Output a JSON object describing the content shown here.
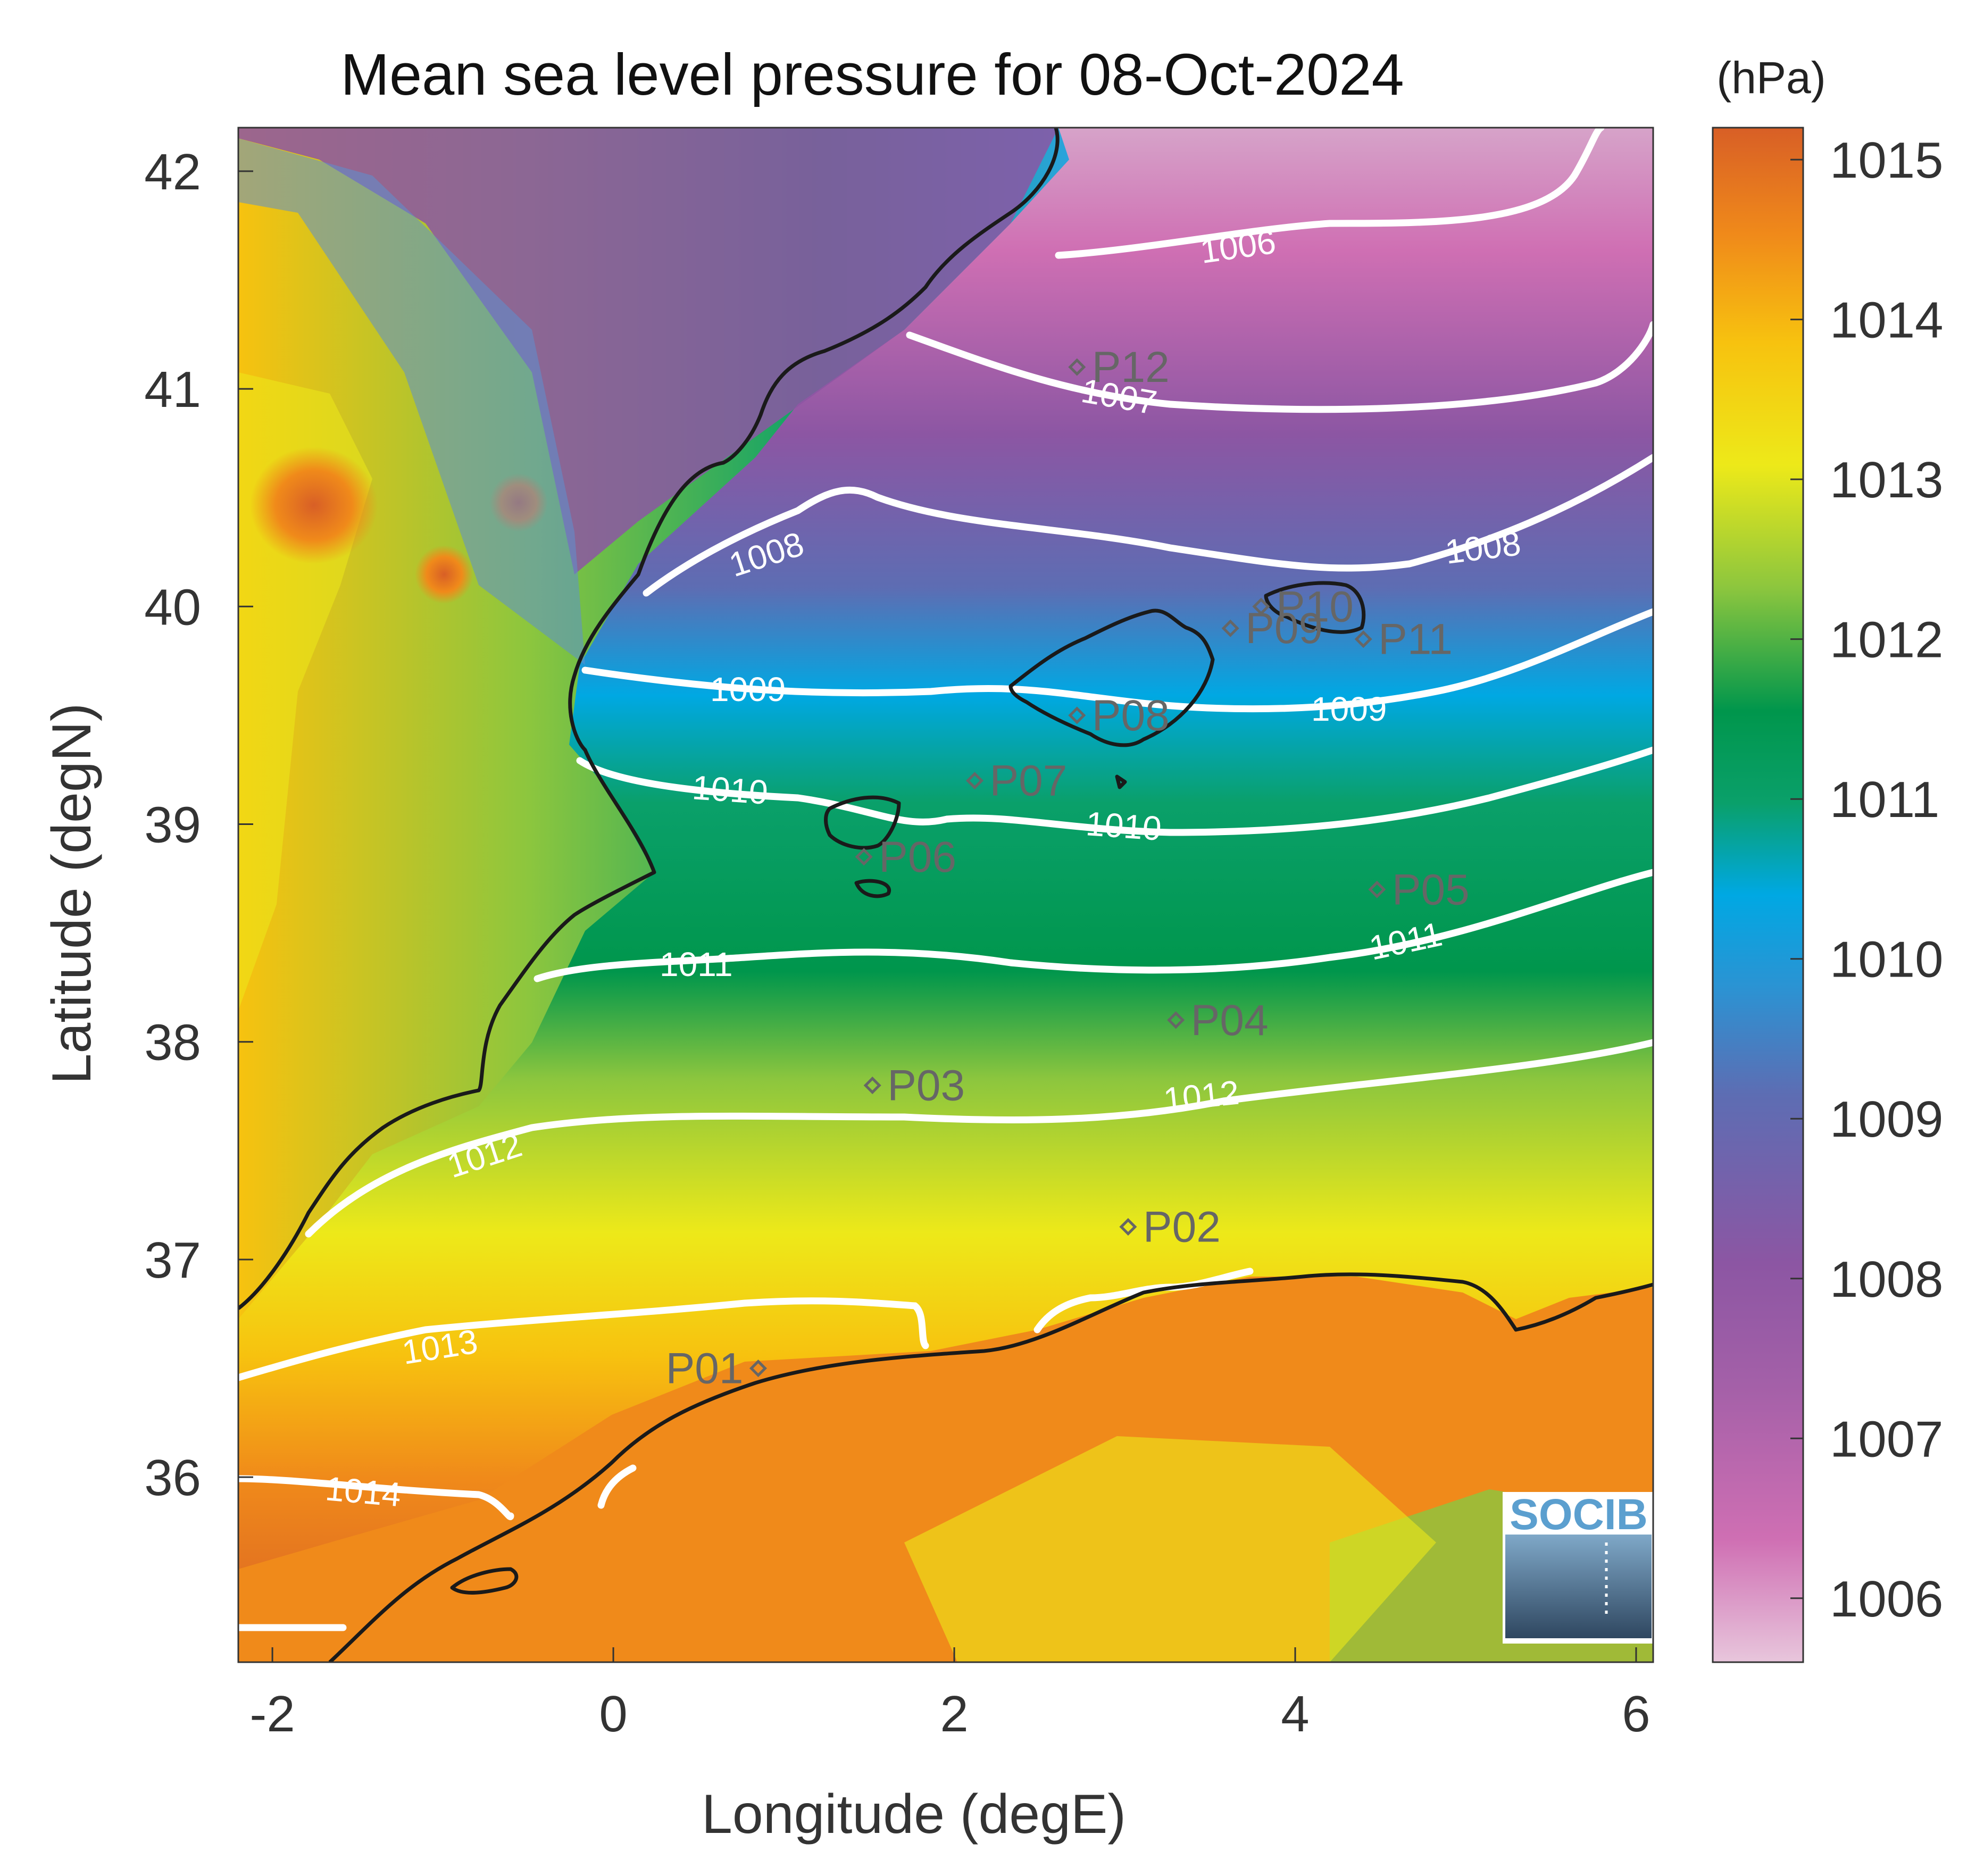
{
  "title": "Mean sea level pressure for 08-Oct-2024",
  "colorbar": {
    "unit": "(hPa)",
    "min": 1005.6,
    "max": 1015.2,
    "ticks": [
      "1006",
      "1007",
      "1008",
      "1009",
      "1010",
      "1011",
      "1012",
      "1013",
      "1014",
      "1015"
    ],
    "colors": [
      "#e8c6dc",
      "#cf6fb3",
      "#8c56a3",
      "#5d6db3",
      "#2ba3dc",
      "#00a8e3",
      "#0aa06a",
      "#00964c",
      "#8cc63e",
      "#ede919",
      "#f7c20f",
      "#f08a1a",
      "#d85f26"
    ]
  },
  "x_axis": {
    "label": "Longitude (degE)",
    "range": [
      -2.2,
      6.1
    ],
    "ticks": [
      "-2",
      "0",
      "2",
      "4",
      "6"
    ]
  },
  "y_axis": {
    "label": "Latitude (degN)",
    "range": [
      35.15,
      42.2
    ],
    "ticks": [
      "36",
      "37",
      "38",
      "39",
      "40",
      "41",
      "42"
    ]
  },
  "contours": [
    {
      "level": "1006",
      "color": "#ffffff"
    },
    {
      "level": "1007",
      "color": "#ffffff"
    },
    {
      "level": "1008",
      "color": "#ffffff"
    },
    {
      "level": "1009",
      "color": "#ffffff"
    },
    {
      "level": "1010",
      "color": "#ffffff"
    },
    {
      "level": "1011",
      "color": "#ffffff"
    },
    {
      "level": "1012",
      "color": "#ffffff"
    },
    {
      "level": "1013",
      "color": "#ffffff"
    },
    {
      "level": "1014",
      "color": "#ffffff"
    }
  ],
  "stations": [
    {
      "name": "P01",
      "lon": 0.85,
      "lat": 36.5
    },
    {
      "name": "P02",
      "lon": 3.02,
      "lat": 37.15
    },
    {
      "name": "P03",
      "lon": 1.52,
      "lat": 37.8
    },
    {
      "name": "P04",
      "lon": 3.3,
      "lat": 38.1
    },
    {
      "name": "P05",
      "lon": 4.48,
      "lat": 38.7
    },
    {
      "name": "P06",
      "lon": 1.47,
      "lat": 38.85
    },
    {
      "name": "P07",
      "lon": 2.12,
      "lat": 39.2
    },
    {
      "name": "P08",
      "lon": 2.72,
      "lat": 39.5
    },
    {
      "name": "P09",
      "lon": 3.62,
      "lat": 39.9
    },
    {
      "name": "P10",
      "lon": 3.8,
      "lat": 40.0
    },
    {
      "name": "P11",
      "lon": 4.4,
      "lat": 39.85
    },
    {
      "name": "P12",
      "lon": 2.72,
      "lat": 41.1
    }
  ],
  "logo": {
    "text": "SOCIB"
  },
  "legend_colors": {
    "coastline": "#1a1a1a",
    "station": "#666666"
  }
}
